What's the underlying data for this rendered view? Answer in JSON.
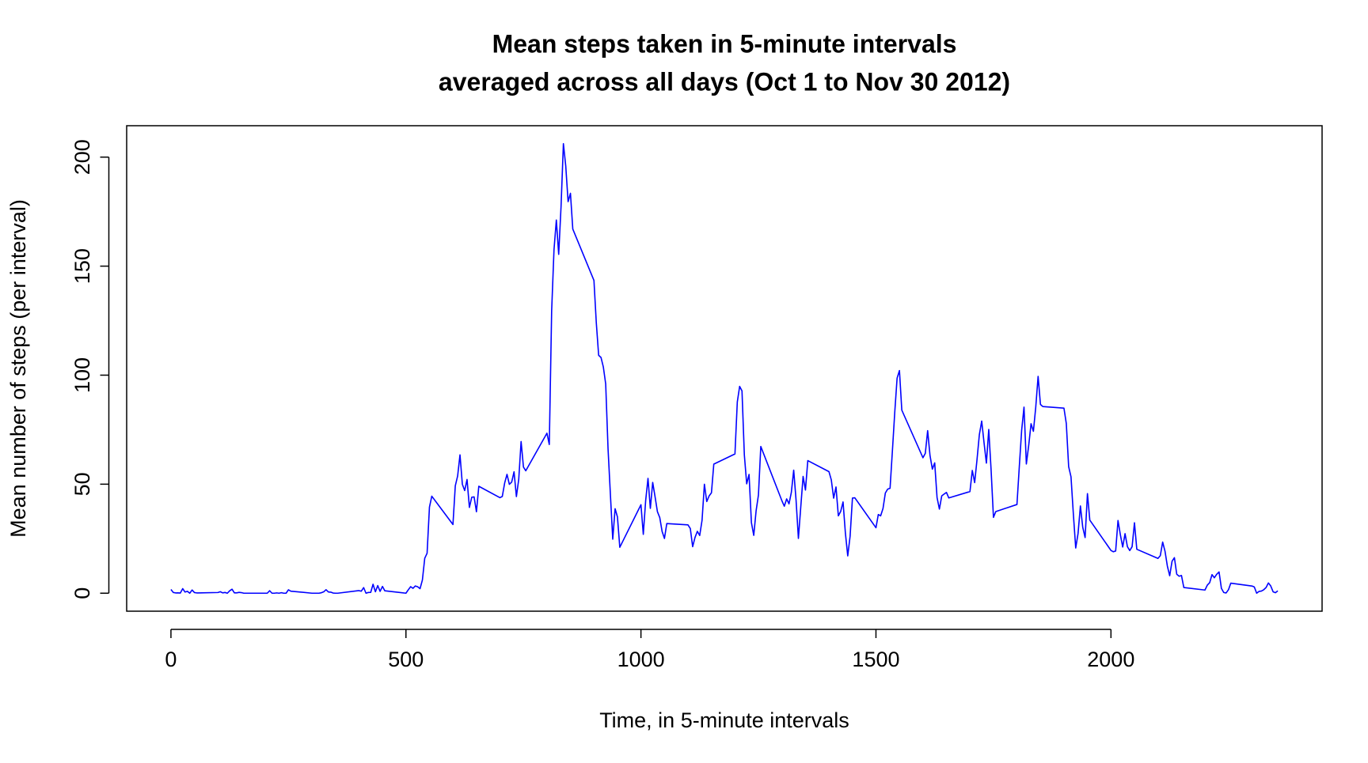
{
  "chart_data": {
    "type": "line",
    "title": "Mean steps taken in 5-minute intervals",
    "subtitle": "averaged across all days (Oct 1 to Nov 30 2012)",
    "xlabel": "Time, in 5-minute intervals",
    "ylabel": "Mean number of steps (per interval)",
    "xlim": [
      -94.2,
      2449.2
    ],
    "ylim": [
      -8.25,
      214.4
    ],
    "xticks": [
      0,
      500,
      1000,
      1500,
      2000
    ],
    "yticks": [
      0,
      50,
      100,
      150,
      200
    ],
    "x": [
      0,
      5,
      10,
      15,
      20,
      25,
      30,
      35,
      40,
      45,
      50,
      55,
      100,
      105,
      110,
      115,
      120,
      125,
      130,
      135,
      140,
      145,
      150,
      155,
      200,
      205,
      210,
      215,
      220,
      225,
      230,
      235,
      240,
      245,
      250,
      255,
      300,
      305,
      310,
      315,
      320,
      325,
      330,
      335,
      340,
      345,
      350,
      355,
      400,
      405,
      410,
      415,
      420,
      425,
      430,
      435,
      440,
      445,
      450,
      455,
      500,
      505,
      510,
      515,
      520,
      525,
      530,
      535,
      540,
      545,
      550,
      555,
      600,
      605,
      610,
      615,
      620,
      625,
      630,
      635,
      640,
      645,
      650,
      655,
      700,
      705,
      710,
      715,
      720,
      725,
      730,
      735,
      740,
      745,
      750,
      755,
      800,
      805,
      810,
      815,
      820,
      825,
      830,
      835,
      840,
      845,
      850,
      855,
      900,
      905,
      910,
      915,
      920,
      925,
      930,
      935,
      940,
      945,
      950,
      955,
      1000,
      1005,
      1010,
      1015,
      1020,
      1025,
      1030,
      1035,
      1040,
      1045,
      1050,
      1055,
      1100,
      1105,
      1110,
      1115,
      1120,
      1125,
      1130,
      1135,
      1140,
      1145,
      1150,
      1155,
      1200,
      1205,
      1210,
      1215,
      1220,
      1225,
      1230,
      1235,
      1240,
      1245,
      1250,
      1255,
      1300,
      1305,
      1310,
      1315,
      1320,
      1325,
      1330,
      1335,
      1340,
      1345,
      1350,
      1355,
      1400,
      1405,
      1410,
      1415,
      1420,
      1425,
      1430,
      1435,
      1440,
      1445,
      1450,
      1455,
      1500,
      1505,
      1510,
      1515,
      1520,
      1525,
      1530,
      1535,
      1540,
      1545,
      1550,
      1555,
      1600,
      1605,
      1610,
      1615,
      1620,
      1625,
      1630,
      1635,
      1640,
      1645,
      1650,
      1655,
      1700,
      1705,
      1710,
      1715,
      1720,
      1725,
      1730,
      1735,
      1740,
      1745,
      1750,
      1755,
      1800,
      1805,
      1810,
      1815,
      1820,
      1825,
      1830,
      1835,
      1840,
      1845,
      1850,
      1855,
      1900,
      1905,
      1910,
      1915,
      1920,
      1925,
      1930,
      1935,
      1940,
      1945,
      1950,
      1955,
      2000,
      2005,
      2010,
      2015,
      2020,
      2025,
      2030,
      2035,
      2040,
      2045,
      2050,
      2055,
      2100,
      2105,
      2110,
      2115,
      2120,
      2125,
      2130,
      2135,
      2140,
      2145,
      2150,
      2155,
      2200,
      2205,
      2210,
      2215,
      2220,
      2225,
      2230,
      2235,
      2240,
      2245,
      2250,
      2255,
      2300,
      2305,
      2310,
      2315,
      2320,
      2325,
      2330,
      2335,
      2340,
      2345,
      2350,
      2355
    ],
    "series": [
      {
        "color": "#0000ff",
        "values": [
          1.72,
          0.34,
          0.13,
          0.15,
          0.08,
          2.09,
          0.53,
          0.87,
          0,
          1.47,
          0.3,
          0.13,
          0.32,
          0.68,
          0.15,
          0.34,
          0,
          1.11,
          1.83,
          0.17,
          0.17,
          0.38,
          0.26,
          0,
          0,
          0,
          1.13,
          0,
          0,
          0.13,
          0,
          0.23,
          0,
          0,
          1.55,
          0.94,
          0,
          0,
          0,
          0,
          0.21,
          0.62,
          1.62,
          0.58,
          0.49,
          0.08,
          0,
          0,
          1.19,
          0.94,
          2.57,
          0,
          0.34,
          0.36,
          4.11,
          0.66,
          3.49,
          0.83,
          3.11,
          1.11,
          0,
          1.57,
          3,
          2.25,
          3.32,
          2.96,
          2.09,
          6.06,
          16.02,
          18.34,
          39.45,
          44.49,
          31.49,
          49.26,
          53.77,
          63.45,
          49.96,
          47.08,
          52.15,
          39.34,
          44.02,
          44.17,
          37.36,
          49.04,
          43.81,
          44.38,
          50.51,
          54.51,
          49.92,
          50.98,
          55.68,
          44.32,
          52.26,
          69.55,
          57.85,
          56.15,
          73.38,
          68.21,
          129.43,
          157.53,
          171.15,
          155.4,
          177.3,
          206.17,
          195.92,
          179.57,
          183.4,
          167.02,
          143.45,
          124.04,
          109.11,
          108.11,
          103.72,
          95.96,
          66.21,
          45.23,
          24.79,
          38.75,
          34.98,
          21.06,
          40.57,
          26.98,
          42.42,
          52.66,
          38.92,
          50.79,
          44.28,
          37.42,
          34.7,
          28.34,
          25.09,
          31.94,
          31.36,
          29.68,
          21.32,
          25.55,
          28.38,
          26.47,
          33.43,
          49.98,
          42.04,
          44.6,
          46.04,
          59.19,
          63.87,
          87.7,
          94.85,
          92.77,
          63.4,
          50.17,
          54.47,
          32.42,
          26.53,
          37.74,
          45.06,
          67.28,
          42.34,
          39.89,
          43.26,
          40.98,
          46.25,
          56.43,
          42.75,
          25.13,
          39.45,
          53.55,
          47.32,
          60.81,
          55.75,
          51.96,
          43.58,
          48.7,
          35.47,
          37.55,
          41.85,
          27.51,
          17.11,
          26.08,
          43.62,
          43.77,
          30.02,
          36.08,
          35.49,
          38.85,
          45.96,
          47.75,
          48.13,
          65.32,
          82.91,
          98.66,
          102.11,
          83.96,
          62.13,
          64.13,
          74.55,
          63.17,
          56.91,
          59.77,
          43.87,
          38.57,
          44.66,
          45.45,
          46.21,
          43.68,
          46.62,
          56.3,
          50.72,
          61.23,
          72.72,
          78.94,
          68.94,
          59.66,
          75.09,
          56.51,
          34.77,
          37.45,
          40.68,
          58.02,
          74.7,
          85.32,
          59.26,
          67.77,
          77.7,
          74.25,
          85.34,
          99.45,
          86.58,
          85.6,
          84.87,
          77.83,
          58.04,
          53.36,
          36.32,
          20.72,
          27.4,
          40.02,
          30.21,
          25.55,
          45.66,
          33.53,
          19.62,
          19.02,
          19.34,
          33.34,
          26.81,
          21.17,
          27.3,
          21.34,
          19.55,
          21.32,
          32.3,
          20.15,
          15.94,
          17.23,
          23.45,
          19.25,
          12.45,
          8.02,
          14.66,
          16.3,
          8.68,
          7.79,
          8.13,
          2.62,
          1.45,
          3.68,
          4.81,
          8.51,
          7.08,
          8.7,
          9.75,
          2.21,
          0.32,
          0.11,
          1.6,
          4.6,
          3.3,
          2.85,
          0,
          0.83,
          0.96,
          1.58,
          2.6,
          4.7,
          3.3,
          0.64,
          0.23,
          1.08
        ]
      }
    ]
  }
}
